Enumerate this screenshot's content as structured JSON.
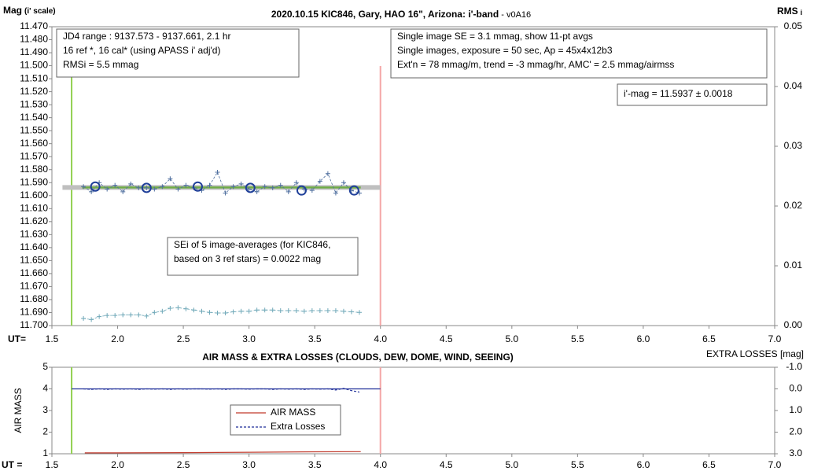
{
  "chart_data": [
    {
      "type": "line",
      "title": "2020.10.15 KIC846, Gary, HAO 16\", Arizona: i'-band",
      "title_suffix": " - v0A16",
      "ylabel": "Mag",
      "ylabel_note": "(i' scale)",
      "y2label": "RMS",
      "y2label_sub": "i",
      "xlabel": "UT=",
      "xlim": [
        1.5,
        7.0
      ],
      "xticks": [
        {
          "value": 1.5,
          "label": "1.5"
        },
        {
          "value": 2.0,
          "label": "2.0"
        },
        {
          "value": 2.5,
          "label": "2.5"
        },
        {
          "value": 3.0,
          "label": "3.0"
        },
        {
          "value": 3.5,
          "label": "3.5"
        },
        {
          "value": 4.0,
          "label": "4.0"
        },
        {
          "value": 4.5,
          "label": "4.5"
        },
        {
          "value": 5.0,
          "label": "5.0"
        },
        {
          "value": 5.5,
          "label": "5.5"
        },
        {
          "value": 6.0,
          "label": "6.0"
        },
        {
          "value": 6.5,
          "label": "6.5"
        },
        {
          "value": 7.0,
          "label": "7.0"
        }
      ],
      "ylim": [
        11.7,
        11.47
      ],
      "yticks": [
        {
          "value": 11.47,
          "label": "11.470"
        },
        {
          "value": 11.48,
          "label": "11.480"
        },
        {
          "value": 11.49,
          "label": "11.490"
        },
        {
          "value": 11.5,
          "label": "11.500"
        },
        {
          "value": 11.51,
          "label": "11.510"
        },
        {
          "value": 11.52,
          "label": "11.520"
        },
        {
          "value": 11.53,
          "label": "11.530"
        },
        {
          "value": 11.54,
          "label": "11.540"
        },
        {
          "value": 11.55,
          "label": "11.550"
        },
        {
          "value": 11.56,
          "label": "11.560"
        },
        {
          "value": 11.57,
          "label": "11.570"
        },
        {
          "value": 11.58,
          "label": "11.580"
        },
        {
          "value": 11.59,
          "label": "11.590"
        },
        {
          "value": 11.6,
          "label": "11.600"
        },
        {
          "value": 11.61,
          "label": "11.610"
        },
        {
          "value": 11.62,
          "label": "11.620"
        },
        {
          "value": 11.63,
          "label": "11.630"
        },
        {
          "value": 11.64,
          "label": "11.640"
        },
        {
          "value": 11.65,
          "label": "11.650"
        },
        {
          "value": 11.66,
          "label": "11.660"
        },
        {
          "value": 11.67,
          "label": "11.670"
        },
        {
          "value": 11.68,
          "label": "11.680"
        },
        {
          "value": 11.69,
          "label": "11.690"
        },
        {
          "value": 11.7,
          "label": "11.700"
        }
      ],
      "y2lim": [
        0,
        0.05
      ],
      "y2ticks": [
        {
          "value": 0,
          "label": "0.00"
        },
        {
          "value": 0.01,
          "label": "0.01"
        },
        {
          "value": 0.02,
          "label": "0.02"
        },
        {
          "value": 0.03,
          "label": "0.03"
        },
        {
          "value": 0.04,
          "label": "0.04"
        },
        {
          "value": 0.05,
          "label": "0.05"
        }
      ],
      "grid": false,
      "vlines": [
        {
          "value": 1.65,
          "color": "#92d050"
        },
        {
          "value": 4.0,
          "color": "#f4a6a6"
        }
      ],
      "fit": {
        "x": [
          1.73,
          3.85
        ],
        "value": 11.5937,
        "color": "#70ad47",
        "band_color": "#bfbfbf"
      },
      "series": [
        {
          "marker": "plus",
          "dash": true,
          "color": "#4f6f9f",
          "x": [
            1.74,
            1.8,
            1.86,
            1.92,
            1.98,
            2.04,
            2.1,
            2.16,
            2.22,
            2.28,
            2.34,
            2.4,
            2.46,
            2.52,
            2.58,
            2.64,
            2.7,
            2.76,
            2.82,
            2.88,
            2.94,
            3.0,
            3.06,
            3.12,
            3.18,
            3.24,
            3.3,
            3.36,
            3.42,
            3.48,
            3.54,
            3.6,
            3.66,
            3.72,
            3.78,
            3.84
          ],
          "values": [
            11.593,
            11.597,
            11.59,
            11.595,
            11.592,
            11.597,
            11.591,
            11.594,
            11.594,
            11.595,
            11.593,
            11.587,
            11.595,
            11.592,
            11.594,
            11.596,
            11.592,
            11.582,
            11.598,
            11.593,
            11.591,
            11.595,
            11.597,
            11.593,
            11.594,
            11.592,
            11.597,
            11.59,
            11.595,
            11.596,
            11.589,
            11.583,
            11.598,
            11.59,
            11.596,
            11.598
          ]
        },
        {
          "marker": "circle",
          "dash": false,
          "color": "#1f3f99",
          "x": [
            1.83,
            2.22,
            2.61,
            3.01,
            3.4,
            3.8
          ],
          "values": [
            11.593,
            11.594,
            11.593,
            11.594,
            11.596,
            11.596
          ]
        },
        {
          "marker": "plus",
          "dash": true,
          "color": "#6fa8b8",
          "axis": "y2",
          "x": [
            1.74,
            1.8,
            1.86,
            1.92,
            1.98,
            2.04,
            2.1,
            2.16,
            2.22,
            2.28,
            2.34,
            2.4,
            2.46,
            2.52,
            2.58,
            2.64,
            2.7,
            2.76,
            2.82,
            2.88,
            2.94,
            3.0,
            3.06,
            3.12,
            3.18,
            3.24,
            3.3,
            3.36,
            3.42,
            3.48,
            3.54,
            3.6,
            3.66,
            3.72,
            3.78,
            3.84
          ],
          "values": [
            0.0012,
            0.001,
            0.0015,
            0.0017,
            0.0017,
            0.0018,
            0.0018,
            0.0018,
            0.0016,
            0.0022,
            0.0024,
            0.0029,
            0.003,
            0.0028,
            0.0026,
            0.0024,
            0.0022,
            0.0021,
            0.0021,
            0.0023,
            0.0024,
            0.0024,
            0.0026,
            0.0026,
            0.0026,
            0.0025,
            0.0025,
            0.0025,
            0.0024,
            0.0025,
            0.0025,
            0.0025,
            0.0025,
            0.0024,
            0.0023,
            0.0022
          ]
        }
      ],
      "annotations": [
        {
          "lines": [
            "JD4 range : 9137.573 - 9137.661, 2.1  hr",
            "16 ref *, 16 cal* (using APASS i' adj'd)",
            "RMSi = 5.5 mmag"
          ]
        },
        {
          "lines": [
            "Single image SE = 3.1 mmag, show 11-pt avgs",
            "Single images, exposure = 50 sec, Ap = 45x4x12b3",
            "Ext'n = 78 mmag/m, trend = -3 mmag/hr, AMC' = 2.5 mmag/airmss"
          ]
        },
        {
          "lines": [
            "i'-mag = 11.5937 ± 0.0018"
          ]
        },
        {
          "lines": [
            "SEi of 5 image-averages (for KIC846,",
            "based on 3 ref stars) = 0.0022 mag"
          ]
        }
      ]
    },
    {
      "type": "line",
      "title": "AIR MASS & EXTRA LOSSES (CLOUDS, DEW, DOME, WIND, SEEING)",
      "ylabel": "AIR MASS",
      "y2label": "EXTRA LOSSES [mag]",
      "xlabel": "UT =",
      "xlim": [
        1.5,
        7.0
      ],
      "xticks": [
        {
          "value": 1.5,
          "label": "1.5"
        },
        {
          "value": 2.0,
          "label": "2.0"
        },
        {
          "value": 2.5,
          "label": "2.5"
        },
        {
          "value": 3.0,
          "label": "3.0"
        },
        {
          "value": 3.5,
          "label": "3.5"
        },
        {
          "value": 4.0,
          "label": "4.0"
        },
        {
          "value": 4.5,
          "label": "4.5"
        },
        {
          "value": 5.0,
          "label": "5.0"
        },
        {
          "value": 5.5,
          "label": "5.5"
        },
        {
          "value": 6.0,
          "label": "6.0"
        },
        {
          "value": 6.5,
          "label": "6.5"
        },
        {
          "value": 7.0,
          "label": "7.0"
        }
      ],
      "ylim": [
        1,
        5
      ],
      "yticks": [
        1,
        2,
        3,
        4,
        5
      ],
      "y2lim": [
        3,
        -1
      ],
      "y2ticks": [
        {
          "value": -1,
          "label": "-1.0"
        },
        {
          "value": 0,
          "label": "0.0"
        },
        {
          "value": 1,
          "label": "1.0"
        },
        {
          "value": 2,
          "label": "2.0"
        },
        {
          "value": 3,
          "label": "3.0"
        }
      ],
      "grid": false,
      "vlines": [
        {
          "value": 1.65,
          "color": "#92d050"
        },
        {
          "value": 4.0,
          "color": "#f4a6a6"
        }
      ],
      "hline_y2": {
        "value": 0,
        "color": "#1f2f99",
        "x": [
          1.65,
          4.0
        ]
      },
      "series": [
        {
          "name": "AIR MASS",
          "marker": "none",
          "dash": false,
          "color": "#c0392b",
          "x": [
            1.75,
            2.0,
            2.5,
            3.0,
            3.5,
            3.85
          ],
          "values": [
            1.04,
            1.04,
            1.05,
            1.07,
            1.09,
            1.1
          ]
        },
        {
          "name": "Extra Losses",
          "marker": "none",
          "dash": true,
          "color": "#1f2f99",
          "axis": "y2",
          "x": [
            1.74,
            1.8,
            1.86,
            1.92,
            1.98,
            2.04,
            2.1,
            2.16,
            2.22,
            2.28,
            2.34,
            2.4,
            2.46,
            2.52,
            2.58,
            2.64,
            2.7,
            2.76,
            2.82,
            2.88,
            2.94,
            3.0,
            3.06,
            3.12,
            3.18,
            3.24,
            3.3,
            3.36,
            3.42,
            3.48,
            3.54,
            3.6,
            3.66,
            3.72,
            3.78,
            3.84
          ],
          "values": [
            0.0,
            0.02,
            0.0,
            0.02,
            0.0,
            0.01,
            0.0,
            0.02,
            0.0,
            0.01,
            0.0,
            0.02,
            0.0,
            0.01,
            0.0,
            0.0,
            0.01,
            0.0,
            0.02,
            0.0,
            0.0,
            0.01,
            0.0,
            0.0,
            0.02,
            0.0,
            0.01,
            0.0,
            0.02,
            0.0,
            0.01,
            0.0,
            0.05,
            -0.02,
            0.08,
            0.15
          ]
        }
      ]
    }
  ]
}
